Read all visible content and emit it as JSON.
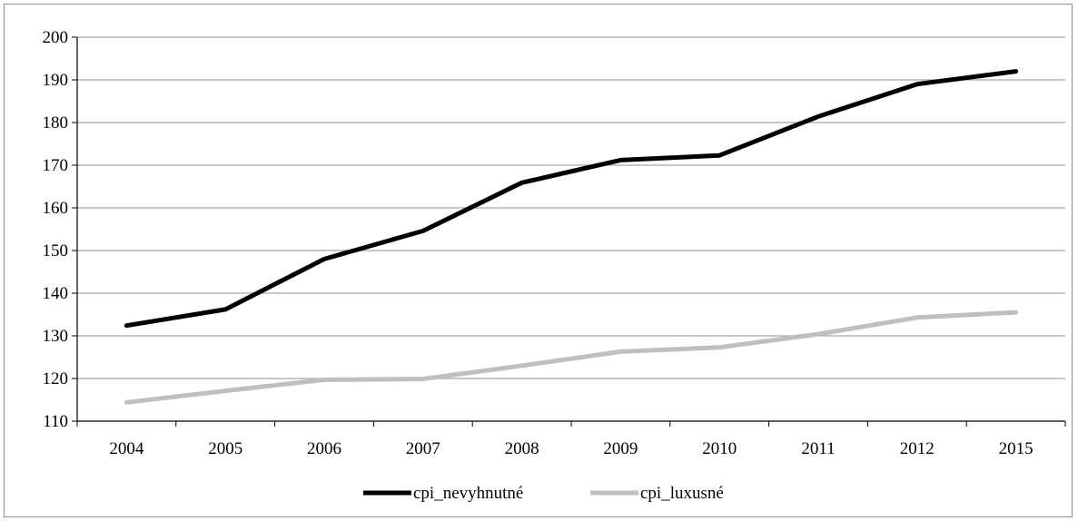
{
  "chart_data": {
    "type": "line",
    "title": "",
    "xlabel": "",
    "ylabel": "",
    "categories": [
      "2004",
      "2005",
      "2006",
      "2007",
      "2008",
      "2009",
      "2010",
      "2011",
      "2012",
      "2015"
    ],
    "ylim": [
      110,
      200
    ],
    "yticks": [
      110,
      120,
      130,
      140,
      150,
      160,
      170,
      180,
      190,
      200
    ],
    "grid": "horizontal",
    "legend_position": "bottom",
    "series": [
      {
        "name": "cpi_nevyhnutné",
        "color": "#000000",
        "values": [
          132.4,
          136.2,
          148.0,
          154.6,
          165.9,
          171.2,
          172.3,
          181.4,
          189.0,
          192.0
        ]
      },
      {
        "name": "cpi_luxusné",
        "color": "#bfbfbf",
        "values": [
          114.4,
          117.1,
          119.7,
          119.9,
          123.0,
          126.3,
          127.3,
          130.4,
          134.3,
          135.5
        ]
      }
    ]
  }
}
